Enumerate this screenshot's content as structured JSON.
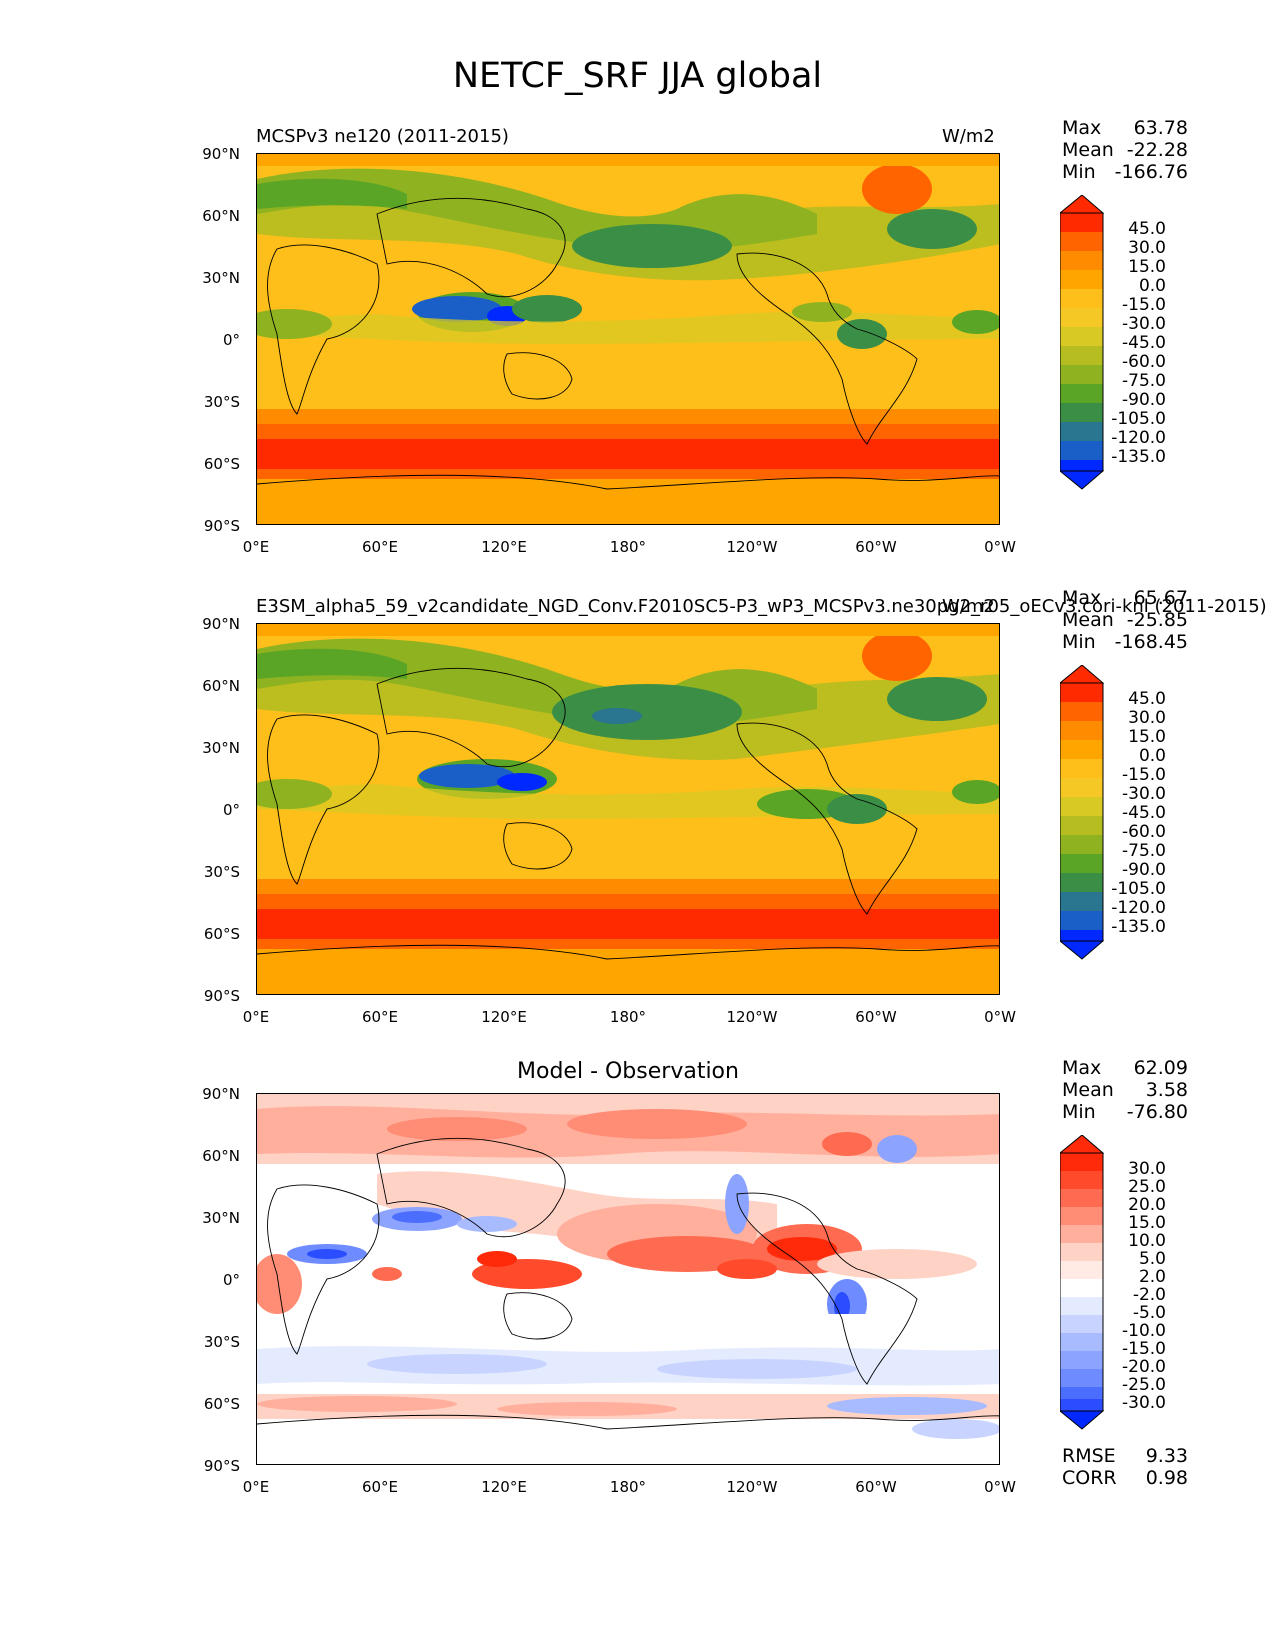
{
  "figure": {
    "title": "NETCF_SRF JJA global"
  },
  "axes": {
    "lat_ticks": [
      "90°N",
      "60°N",
      "30°N",
      "0°",
      "30°S",
      "60°S",
      "90°S"
    ],
    "lon_ticks": [
      "0°E",
      "60°E",
      "120°E",
      "180°",
      "120°W",
      "60°W",
      "0°W"
    ]
  },
  "panels": [
    {
      "title_left": "MCSPv3 ne120 (2011-2015)",
      "units": "W/m2",
      "stats": {
        "max_label": "Max",
        "max": "63.78",
        "mean_label": "Mean",
        "mean": "-22.28",
        "min_label": "Min",
        "min": "-166.76"
      },
      "colorbar_labels": [
        "45.0",
        "30.0",
        "15.0",
        "0.0",
        "-15.0",
        "-30.0",
        "-45.0",
        "-60.0",
        "-75.0",
        "-90.0",
        "-105.0",
        "-120.0",
        "-135.0"
      ]
    },
    {
      "title_left": "E3SM_alpha5_59_v2candidate_NGD_Conv.F2010SC5-P3_wP3_MCSPv3.ne30pg2_r05_oECv3.cori-knl (2011-2015)",
      "units": "W/m2",
      "stats": {
        "max_label": "Max",
        "max": "65.67",
        "mean_label": "Mean",
        "mean": "-25.85",
        "min_label": "Min",
        "min": "-168.45"
      },
      "colorbar_labels": [
        "45.0",
        "30.0",
        "15.0",
        "0.0",
        "-15.0",
        "-30.0",
        "-45.0",
        "-60.0",
        "-75.0",
        "-90.0",
        "-105.0",
        "-120.0",
        "-135.0"
      ]
    },
    {
      "title_center": "Model - Observation",
      "stats": {
        "max_label": "Max",
        "max": "62.09",
        "mean_label": "Mean",
        "mean": "3.58",
        "min_label": "Min",
        "min": "-76.80",
        "rmse_label": "RMSE",
        "rmse": "9.33",
        "corr_label": "CORR",
        "corr": "0.98"
      },
      "colorbar_labels": [
        "30.0",
        "25.0",
        "20.0",
        "15.0",
        "10.0",
        "5.0",
        "2.0",
        "-2.0",
        "-5.0",
        "-10.0",
        "-15.0",
        "-20.0",
        "-25.0",
        "-30.0"
      ]
    }
  ],
  "colors": {
    "main_cmap": [
      "#ff2a00",
      "#ff6400",
      "#ff8c00",
      "#ffa500",
      "#ffbf1a",
      "#f5c825",
      "#d9c924",
      "#b5bd20",
      "#8fb320",
      "#5ba526",
      "#3b8e45",
      "#2a7590",
      "#1a5ec8",
      "#0028ff"
    ],
    "diff_cmap": [
      "#ff2a0a",
      "#ff4a2c",
      "#ff6b50",
      "#ff8c75",
      "#ffaf9c",
      "#ffd2c6",
      "#ffeae4",
      "#ffffff",
      "#e4ebff",
      "#c8d4ff",
      "#a8bbff",
      "#8ca4ff",
      "#6e8cff",
      "#4c6eff",
      "#2a4dff"
    ]
  }
}
